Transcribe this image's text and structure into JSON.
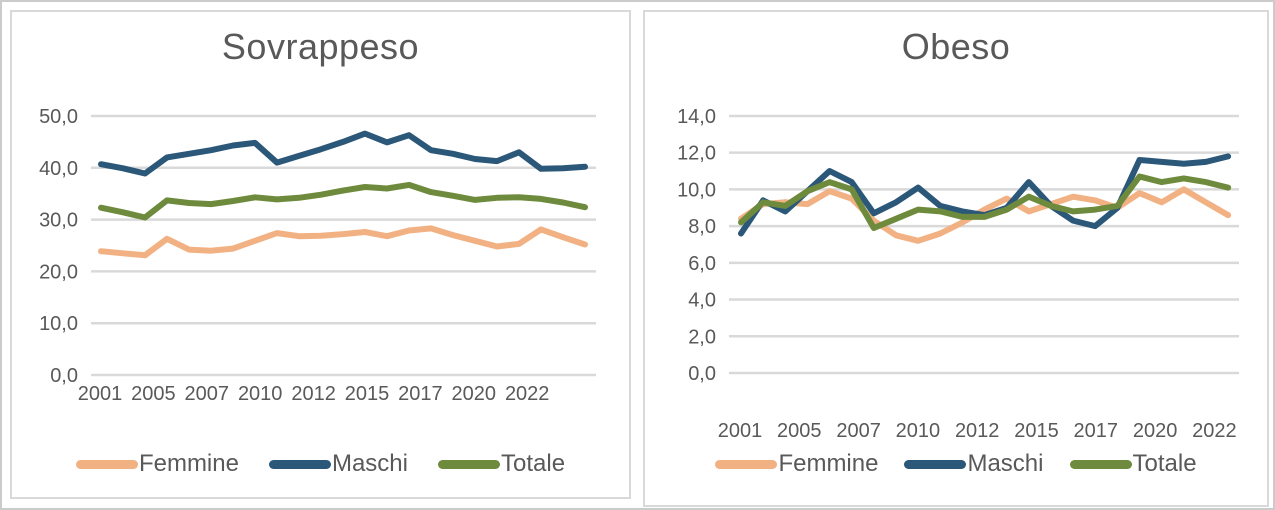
{
  "styles": {
    "grid_color": "#d9d9d9",
    "text_color": "#595959",
    "panel_border_color": "#d9d9d9",
    "outer_border_color": "#cbcbcb",
    "background_color": "#ffffff",
    "femmine_color": "#F2B183",
    "maschi_color": "#2B5779",
    "totale_color": "#6E8B3D"
  },
  "chart_data": [
    {
      "type": "line",
      "title": "Sovrappeso",
      "x": [
        2001,
        2002,
        2003,
        2005,
        2006,
        2007,
        2008,
        2009,
        2010,
        2011,
        2012,
        2013,
        2014,
        2015,
        2016,
        2017,
        2018,
        2019,
        2020,
        2021,
        2022,
        2022.5,
        2023
      ],
      "x_tick_labels": [
        "2001",
        "2005",
        "2007",
        "2010",
        "2012",
        "2015",
        "2017",
        "2020",
        "2022"
      ],
      "y_tick_labels": [
        "0,0",
        "10,0",
        "20,0",
        "30,0",
        "40,0",
        "50,0"
      ],
      "ylim": [
        0,
        50
      ],
      "ytick_step": 10,
      "grid": true,
      "legend_position": "bottom",
      "series": [
        {
          "name": "Femmine",
          "color": "#F2B183",
          "values": [
            23.9,
            23.5,
            23.1,
            26.3,
            24.2,
            24.0,
            24.4,
            25.9,
            27.4,
            26.8,
            26.9,
            27.2,
            27.6,
            26.8,
            27.9,
            28.3,
            27.0,
            25.9,
            24.8,
            25.3,
            28.1,
            26.6,
            25.2
          ]
        },
        {
          "name": "Maschi",
          "color": "#2B5779",
          "values": [
            40.7,
            39.9,
            38.9,
            42.0,
            42.7,
            43.4,
            44.3,
            44.8,
            41.0,
            42.3,
            43.6,
            45.0,
            46.6,
            44.9,
            46.3,
            43.4,
            42.7,
            41.7,
            41.3,
            43.0,
            39.8,
            39.9,
            40.2
          ]
        },
        {
          "name": "Totale",
          "color": "#6E8B3D",
          "values": [
            32.3,
            31.4,
            30.4,
            33.7,
            33.2,
            33.0,
            33.6,
            34.3,
            33.9,
            34.2,
            34.8,
            35.6,
            36.3,
            36.0,
            36.7,
            35.3,
            34.6,
            33.8,
            34.2,
            34.3,
            34.0,
            33.3,
            32.4
          ]
        }
      ]
    },
    {
      "type": "line",
      "title": "Obeso",
      "x": [
        2001,
        2002,
        2003,
        2005,
        2006,
        2007,
        2008,
        2009,
        2010,
        2011,
        2012,
        2013,
        2014,
        2015,
        2016,
        2017,
        2018,
        2019,
        2020,
        2021,
        2022,
        2022.5,
        2023
      ],
      "x_tick_labels": [
        "2001",
        "2005",
        "2007",
        "2010",
        "2012",
        "2015",
        "2017",
        "2020",
        "2022"
      ],
      "y_tick_labels": [
        "0,0",
        "2,0",
        "4,0",
        "6,0",
        "8,0",
        "10,0",
        "12,0",
        "14,0"
      ],
      "ylim": [
        0,
        14
      ],
      "ytick_step": 2,
      "grid": true,
      "legend_position": "bottom",
      "series": [
        {
          "name": "Femmine",
          "color": "#F2B183",
          "values": [
            8.4,
            9.2,
            9.3,
            9.2,
            9.9,
            9.5,
            8.3,
            7.5,
            7.2,
            7.6,
            8.2,
            8.9,
            9.5,
            8.8,
            9.2,
            9.6,
            9.4,
            9.0,
            9.8,
            9.3,
            10.0,
            9.3,
            8.6
          ]
        },
        {
          "name": "Maschi",
          "color": "#2B5779",
          "values": [
            7.6,
            9.4,
            8.8,
            9.9,
            11.0,
            10.4,
            8.7,
            9.3,
            10.1,
            9.1,
            8.8,
            8.6,
            9.0,
            10.4,
            9.1,
            8.3,
            8.0,
            9.0,
            11.6,
            11.5,
            11.4,
            11.5,
            11.8
          ]
        },
        {
          "name": "Totale",
          "color": "#6E8B3D",
          "values": [
            8.2,
            9.3,
            9.1,
            9.9,
            10.4,
            10.0,
            7.9,
            8.4,
            8.9,
            8.8,
            8.5,
            8.5,
            8.9,
            9.6,
            9.1,
            8.8,
            8.9,
            9.1,
            10.7,
            10.4,
            10.6,
            10.4,
            10.1
          ]
        }
      ]
    }
  ]
}
